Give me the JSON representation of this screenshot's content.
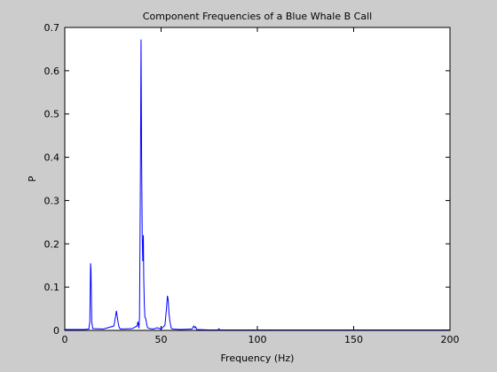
{
  "chart_data": {
    "type": "line",
    "title": "Component Frequencies of a Blue Whale B Call",
    "xlabel": "Frequency (Hz)",
    "ylabel": "P",
    "xlim": [
      0,
      200
    ],
    "ylim": [
      0,
      0.7
    ],
    "xticks": [
      0,
      50,
      100,
      150,
      200
    ],
    "xtick_labels": [
      "0",
      "50",
      "100",
      "150",
      "200"
    ],
    "yticks": [
      0,
      0.1,
      0.2,
      0.3,
      0.4,
      0.5,
      0.6,
      0.7
    ],
    "ytick_labels": [
      "0",
      "0.1",
      "0.2",
      "0.3",
      "0.4",
      "0.5",
      "0.6",
      "0.7"
    ],
    "grid": false,
    "line_color": "#0000ff",
    "background_color": "#cccccc",
    "axes_color": "#ffffff",
    "series": [
      {
        "x": [
          0,
          10,
          12.5,
          13.0,
          13.4,
          13.6,
          14.0,
          14.5,
          20,
          25.5,
          26.2,
          26.8,
          27.3,
          27.8,
          28.3,
          29.0,
          35,
          37.5,
          38.0,
          38.5,
          38.8,
          39.2,
          39.6,
          39.9,
          40.2,
          40.5,
          40.8,
          41.0,
          41.3,
          41.6,
          42.0,
          42.5,
          43.0,
          44,
          46,
          48,
          50,
          52.0,
          52.8,
          53.3,
          53.7,
          54.1,
          54.6,
          55.3,
          56,
          60,
          66.0,
          67.0,
          67.5,
          68.0,
          68.5,
          75,
          79.5,
          80.0,
          80.5,
          90,
          100,
          120,
          150,
          180,
          200
        ],
        "y": [
          0.002,
          0.002,
          0.003,
          0.02,
          0.155,
          0.14,
          0.02,
          0.004,
          0.003,
          0.01,
          0.028,
          0.045,
          0.03,
          0.015,
          0.006,
          0.003,
          0.004,
          0.01,
          0.02,
          0.005,
          0.03,
          0.295,
          0.672,
          0.395,
          0.22,
          0.16,
          0.22,
          0.12,
          0.06,
          0.03,
          0.028,
          0.015,
          0.006,
          0.004,
          0.003,
          0.006,
          0.003,
          0.012,
          0.05,
          0.08,
          0.07,
          0.04,
          0.02,
          0.005,
          0.003,
          0.002,
          0.003,
          0.01,
          0.006,
          0.008,
          0.002,
          0.001,
          0.001,
          0.004,
          0.001,
          0.001,
          0.001,
          0.001,
          0.001,
          0.001,
          0.001
        ]
      }
    ]
  }
}
